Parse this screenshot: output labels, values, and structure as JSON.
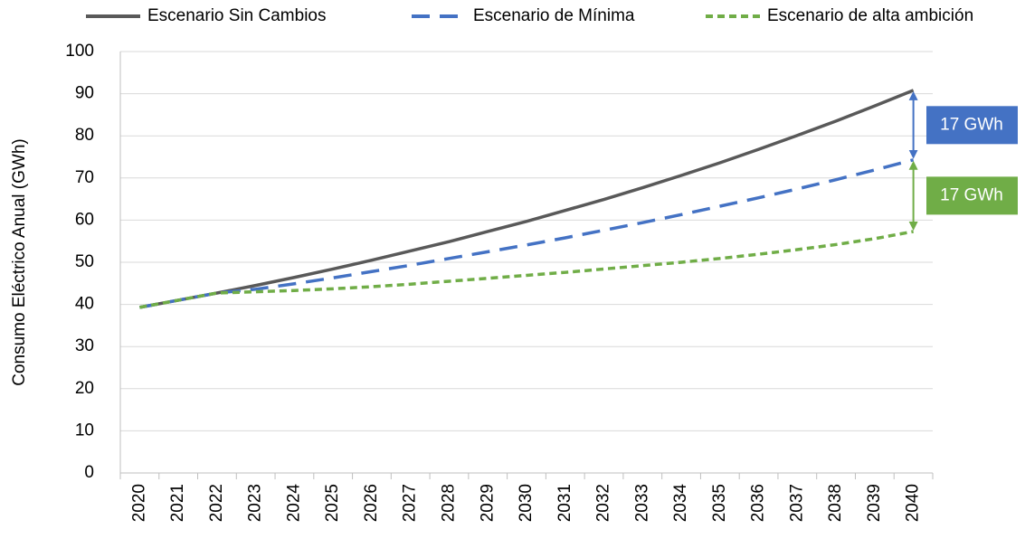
{
  "chart_data": {
    "type": "line",
    "y_label": "Consumo Eléctrico Anual (GWh)",
    "categories": [
      "2020",
      "2021",
      "2022",
      "2023",
      "2024",
      "2025",
      "2026",
      "2027",
      "2028",
      "2029",
      "2030",
      "2031",
      "2032",
      "2033",
      "2034",
      "2035",
      "2036",
      "2037",
      "2038",
      "2039",
      "2040"
    ],
    "series": [
      {
        "name": "Escenario Sin Cambios",
        "color": "#595959",
        "style": "solid",
        "values": [
          39.3,
          41.0,
          42.7,
          44.5,
          46.4,
          48.4,
          50.5,
          52.7,
          54.9,
          57.3,
          59.7,
          62.3,
          64.9,
          67.7,
          70.6,
          73.6,
          76.8,
          80.1,
          83.5,
          87.1,
          90.8
        ]
      },
      {
        "name": "Escenario de Mínima",
        "color": "#4472c4",
        "style": "dashed",
        "values": [
          39.3,
          41.0,
          42.7,
          43.6,
          44.9,
          46.3,
          47.8,
          49.3,
          50.9,
          52.5,
          54.1,
          55.8,
          57.6,
          59.4,
          61.3,
          63.3,
          65.3,
          67.4,
          69.6,
          71.9,
          74.3
        ]
      },
      {
        "name": "Escenario de alta ambición",
        "color": "#70ad47",
        "style": "dotted",
        "values": [
          39.3,
          41.0,
          42.7,
          43.0,
          43.3,
          43.7,
          44.2,
          44.8,
          45.5,
          46.2,
          46.9,
          47.6,
          48.4,
          49.2,
          50.0,
          50.9,
          51.9,
          53.0,
          54.2,
          55.6,
          57.3
        ]
      }
    ],
    "annotations": [
      {
        "text": "17 GWh",
        "color": "#4472c4"
      },
      {
        "text": "17 GWh",
        "color": "#70ad47"
      }
    ],
    "ylim": [
      0,
      100
    ],
    "yticks": [
      0,
      10,
      20,
      30,
      40,
      50,
      60,
      70,
      80,
      90,
      100
    ],
    "grid": true,
    "legend": "top"
  }
}
